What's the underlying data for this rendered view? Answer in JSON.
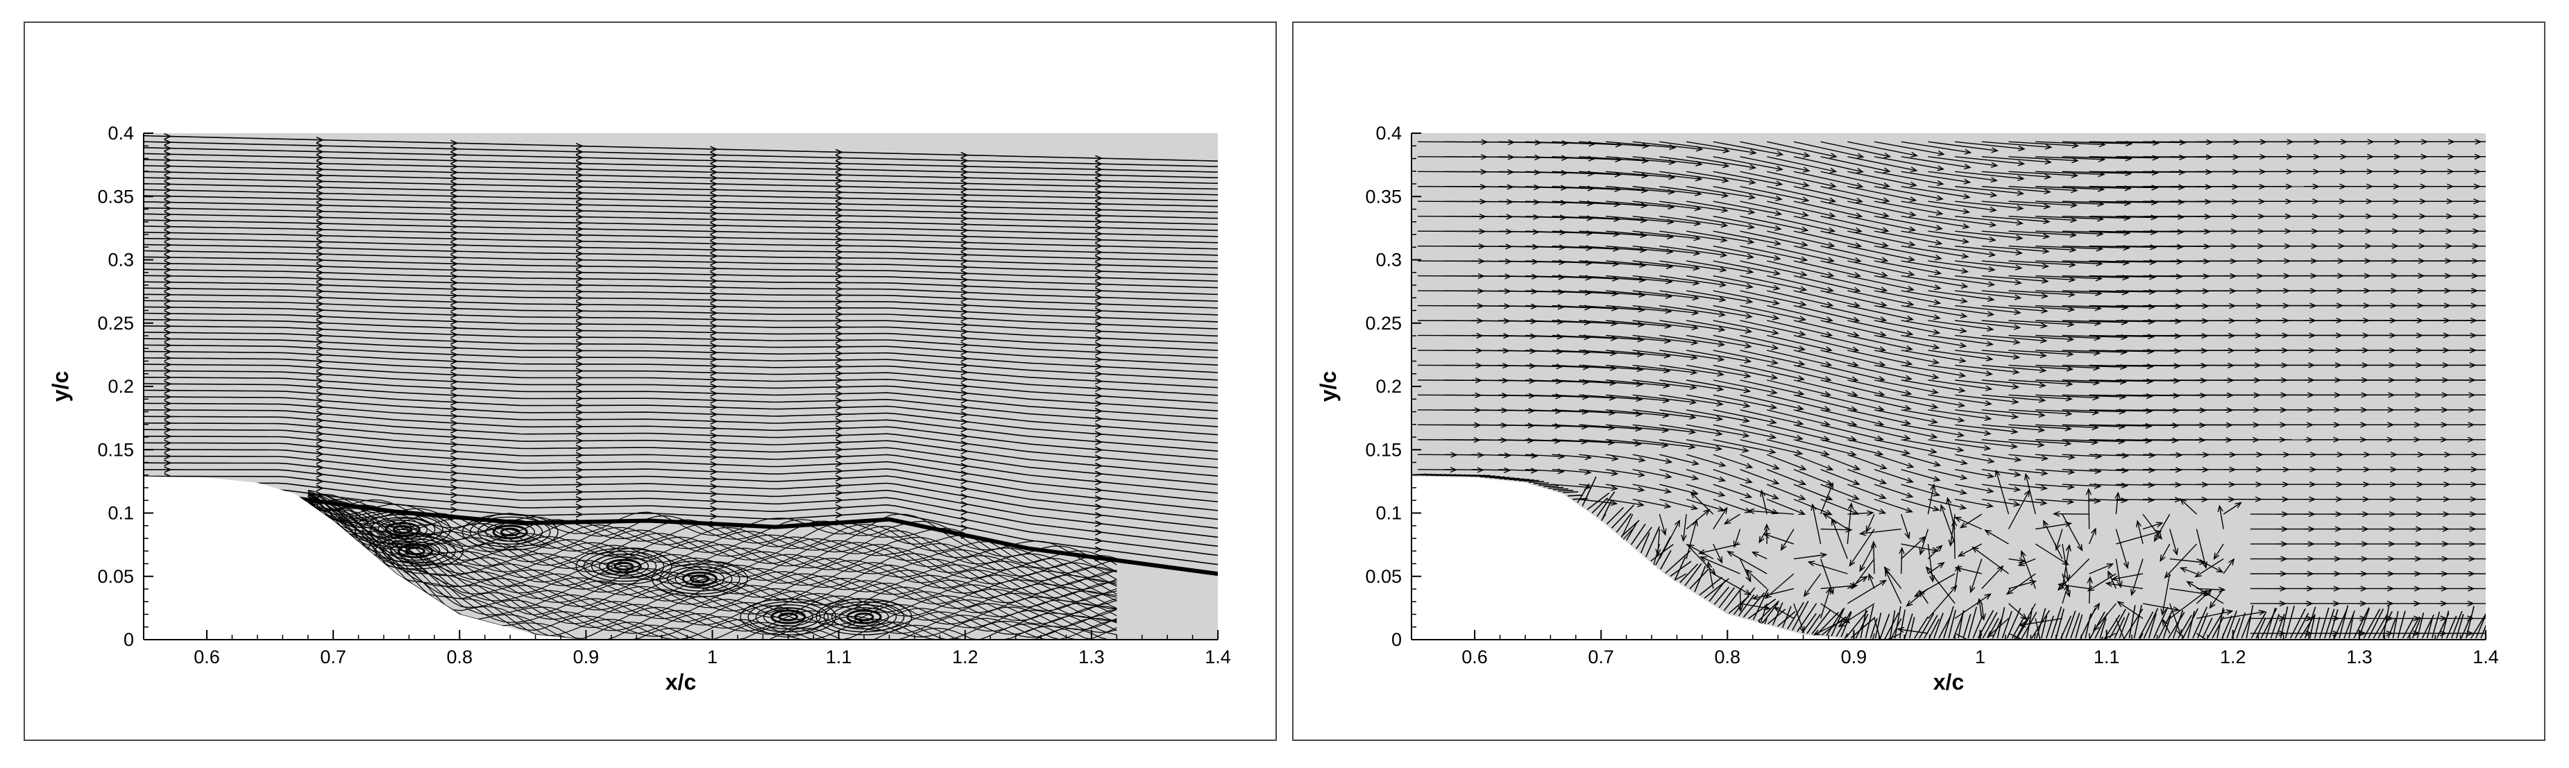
{
  "chart_data": [
    {
      "type": "streamline",
      "xlabel": "x/c",
      "ylabel": "y/c",
      "xlim": [
        0.55,
        1.4
      ],
      "ylim": [
        0,
        0.4
      ],
      "xticks": [
        "0.6",
        "0.7",
        "0.8",
        "0.9",
        "1",
        "1.1",
        "1.2",
        "1.3",
        "1.4"
      ],
      "yticks": [
        "0",
        "0.05",
        "0.1",
        "0.15",
        "0.2",
        "0.25",
        "0.3",
        "0.35",
        "0.4"
      ],
      "background_color": "#d3d3d3",
      "line_color": "#000000",
      "wall_profile": [
        [
          0.55,
          0.129
        ],
        [
          0.6,
          0.128
        ],
        [
          0.64,
          0.124
        ],
        [
          0.67,
          0.115
        ],
        [
          0.7,
          0.094
        ],
        [
          0.75,
          0.052
        ],
        [
          0.8,
          0.02
        ],
        [
          0.86,
          0.004
        ],
        [
          0.9,
          0.0
        ],
        [
          1.4,
          0.0
        ]
      ],
      "shear_layer": [
        [
          0.66,
          0.113
        ],
        [
          0.75,
          0.101
        ],
        [
          0.85,
          0.092
        ],
        [
          0.95,
          0.094
        ],
        [
          1.05,
          0.089
        ],
        [
          1.14,
          0.095
        ],
        [
          1.25,
          0.072
        ],
        [
          1.4,
          0.052
        ]
      ],
      "vortex_centers": [
        [
          0.755,
          0.087
        ],
        [
          0.765,
          0.07
        ],
        [
          0.84,
          0.085
        ],
        [
          0.93,
          0.058
        ],
        [
          0.99,
          0.048
        ],
        [
          1.06,
          0.018
        ],
        [
          1.12,
          0.018
        ]
      ],
      "grid": false
    },
    {
      "type": "vector",
      "xlabel": "x/c",
      "ylabel": "y/c",
      "xlim": [
        0.55,
        1.4
      ],
      "ylim": [
        0,
        0.4
      ],
      "xticks": [
        "0.6",
        "0.7",
        "0.8",
        "0.9",
        "1",
        "1.1",
        "1.2",
        "1.3",
        "1.4"
      ],
      "yticks": [
        "0",
        "0.05",
        "0.1",
        "0.15",
        "0.2",
        "0.25",
        "0.3",
        "0.35",
        "0.4"
      ],
      "background_color": "#d3d3d3",
      "arrow_color": "#000000",
      "wall_profile": [
        [
          0.55,
          0.129
        ],
        [
          0.6,
          0.128
        ],
        [
          0.64,
          0.124
        ],
        [
          0.67,
          0.115
        ],
        [
          0.7,
          0.094
        ],
        [
          0.75,
          0.052
        ],
        [
          0.8,
          0.02
        ],
        [
          0.86,
          0.004
        ],
        [
          0.9,
          0.0
        ],
        [
          1.4,
          0.0
        ]
      ],
      "separation_region": {
        "x_start": 0.68,
        "x_end": 1.2,
        "y_top": 0.1
      },
      "grid": false
    }
  ]
}
